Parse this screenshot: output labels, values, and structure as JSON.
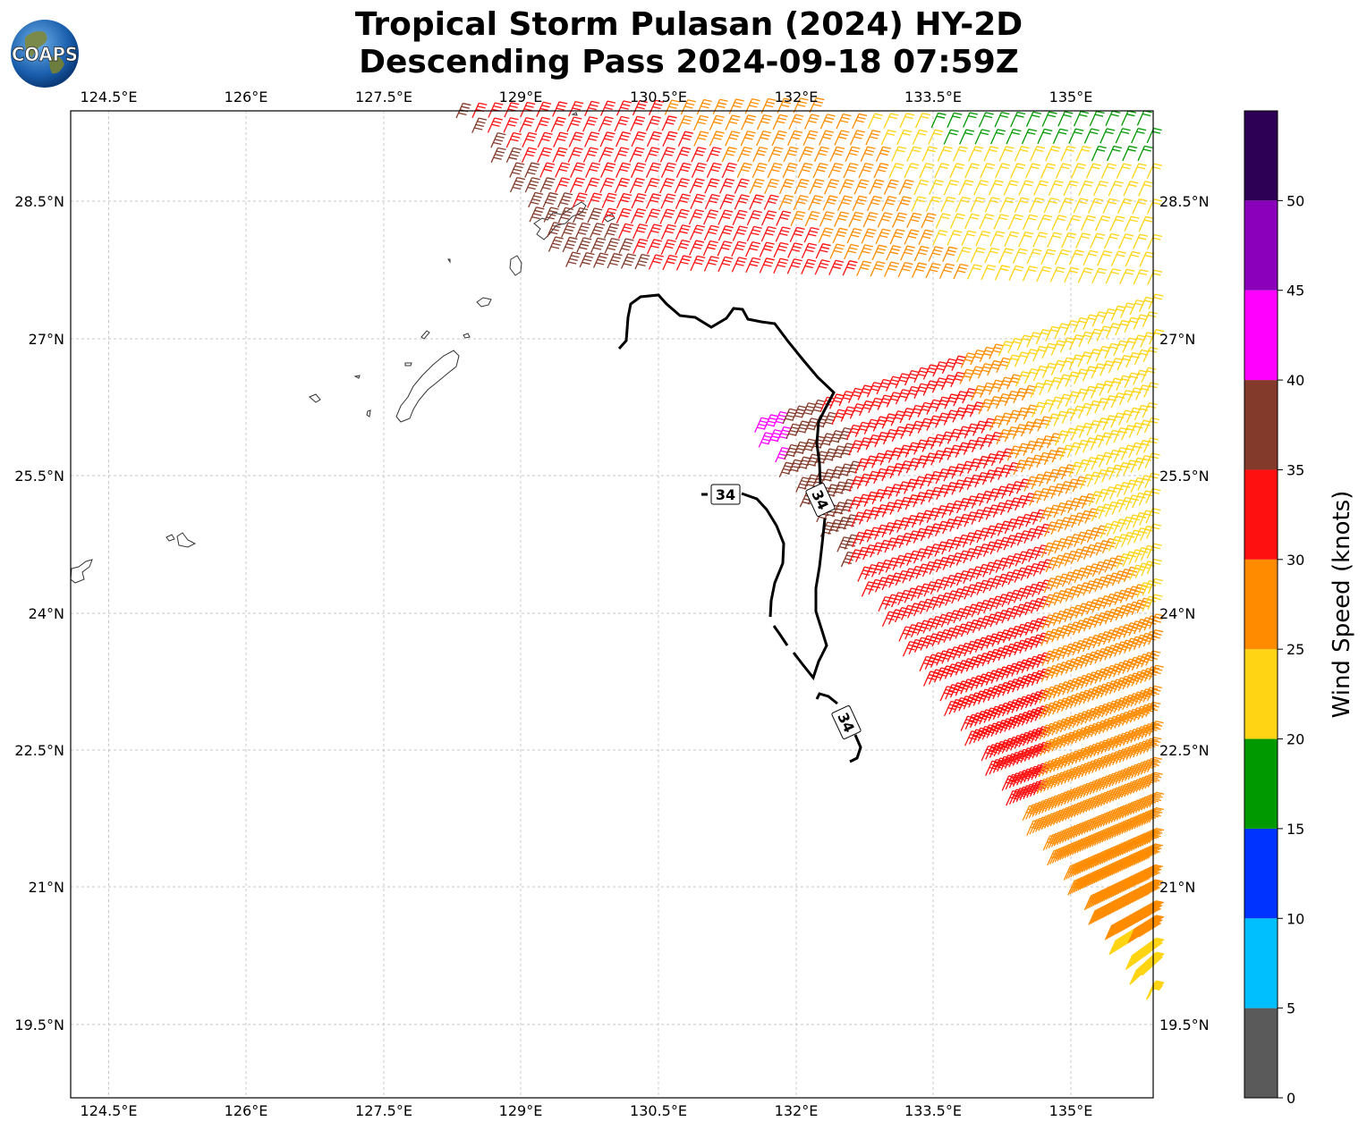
{
  "title": {
    "line1": "Tropical Storm Pulasan (2024) HY-2D",
    "line2": "Descending Pass 2024-09-18 07:59Z"
  },
  "logo": {
    "text": "COAPS",
    "icon": "globe-icon"
  },
  "map": {
    "lon_labels": [
      "124.5°E",
      "126°E",
      "127.5°E",
      "129°E",
      "130.5°E",
      "132°E",
      "133.5°E",
      "135°E"
    ],
    "lat_labels": [
      "28.5°N",
      "27°N",
      "25.5°N",
      "24°N",
      "22.5°N",
      "21°N",
      "19.5°N"
    ],
    "lon_range": [
      124.1,
      135.9
    ],
    "lat_range": [
      18.7,
      29.5
    ],
    "gridlines": true,
    "contour_label": "34",
    "contour_label_count": 3
  },
  "colorbar": {
    "label": "Wind Speed (knots)",
    "tick_labels": [
      "0",
      "5",
      "10",
      "15",
      "20",
      "25",
      "30",
      "35",
      "40",
      "45",
      "50"
    ],
    "bins": [
      {
        "from": 0,
        "to": 5,
        "color": "#5a5a5a"
      },
      {
        "from": 5,
        "to": 10,
        "color": "#00bfff"
      },
      {
        "from": 10,
        "to": 15,
        "color": "#0033ff"
      },
      {
        "from": 15,
        "to": 20,
        "color": "#009900"
      },
      {
        "from": 20,
        "to": 25,
        "color": "#ffd414"
      },
      {
        "from": 25,
        "to": 30,
        "color": "#ff8c00"
      },
      {
        "from": 30,
        "to": 35,
        "color": "#ff1010"
      },
      {
        "from": 35,
        "to": 40,
        "color": "#833a2a"
      },
      {
        "from": 40,
        "to": 45,
        "color": "#ff00ff"
      },
      {
        "from": 45,
        "to": 50,
        "color": "#8a00bb"
      },
      {
        "from": 50,
        "to": 55,
        "color": "#2e0055"
      }
    ]
  }
}
